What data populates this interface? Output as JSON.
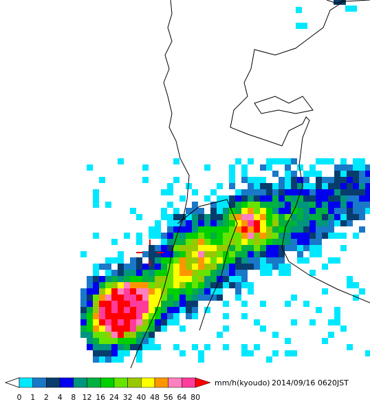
{
  "legend": {
    "labels": [
      "0",
      "1",
      "2",
      "4",
      "8",
      "12",
      "16",
      "24",
      "32",
      "40",
      "48",
      "56",
      "64",
      "80"
    ],
    "colors": [
      "#00e8ff",
      "#1a78c8",
      "#083c6c",
      "#0000f0",
      "#00957d",
      "#00b040",
      "#00d000",
      "#66e400",
      "#98c800",
      "#ffff00",
      "#ff9600",
      "#ff80c0",
      "#ff3c9c"
    ],
    "over_color": "#ff0000",
    "unit": "mm/h(kyoudo)",
    "timestamp": "2014/09/16 0620JST"
  }
}
